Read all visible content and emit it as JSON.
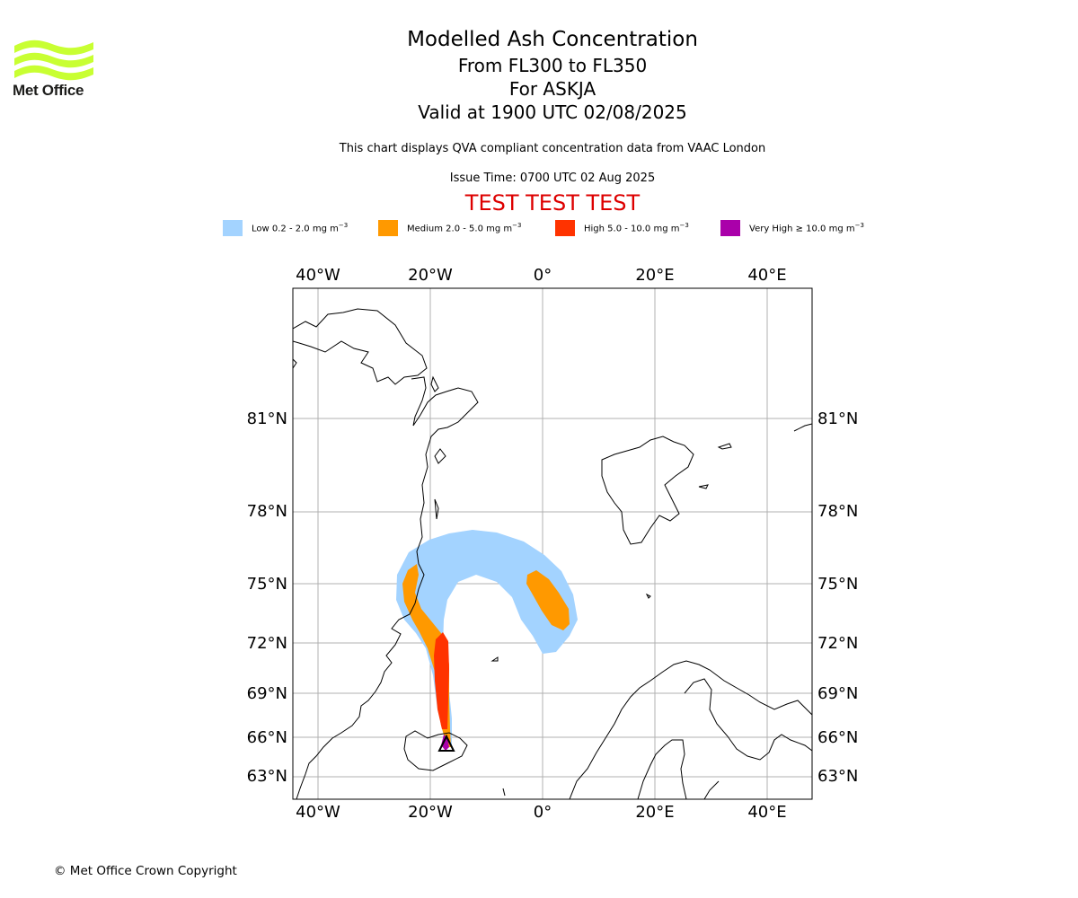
{
  "brand": {
    "name": "Met Office"
  },
  "title": "Modelled Ash Concentration",
  "flight_levels": "From FL300 to FL350",
  "volcano": "For ASKJA",
  "valid_time": "Valid at 1900 UTC 02/08/2025",
  "description": "This chart displays QVA compliant concentration data from VAAC London",
  "issue_time": "Issue Time: 0700 UTC 02 Aug 2025",
  "test_banner": "TEST TEST TEST",
  "legend": [
    {
      "label": "Low 0.2 - 2.0 mg m",
      "color": "#a3d3ff"
    },
    {
      "label": "Medium 2.0 - 5.0 mg m",
      "color": "#ff9900"
    },
    {
      "label": "High 5.0 - 10.0 mg m",
      "color": "#ff3300"
    },
    {
      "label": "Very High  ≥  10.0 mg m",
      "color": "#aa00aa"
    }
  ],
  "legend_unit_exp": "−3",
  "map": {
    "lon_labels": [
      "40°W",
      "20°W",
      "0°",
      "20°E",
      "40°E"
    ],
    "lat_labels": [
      "81°N",
      "78°N",
      "75°N",
      "72°N",
      "69°N",
      "66°N",
      "63°N"
    ]
  },
  "copyright": "© Met Office Crown Copyright"
}
